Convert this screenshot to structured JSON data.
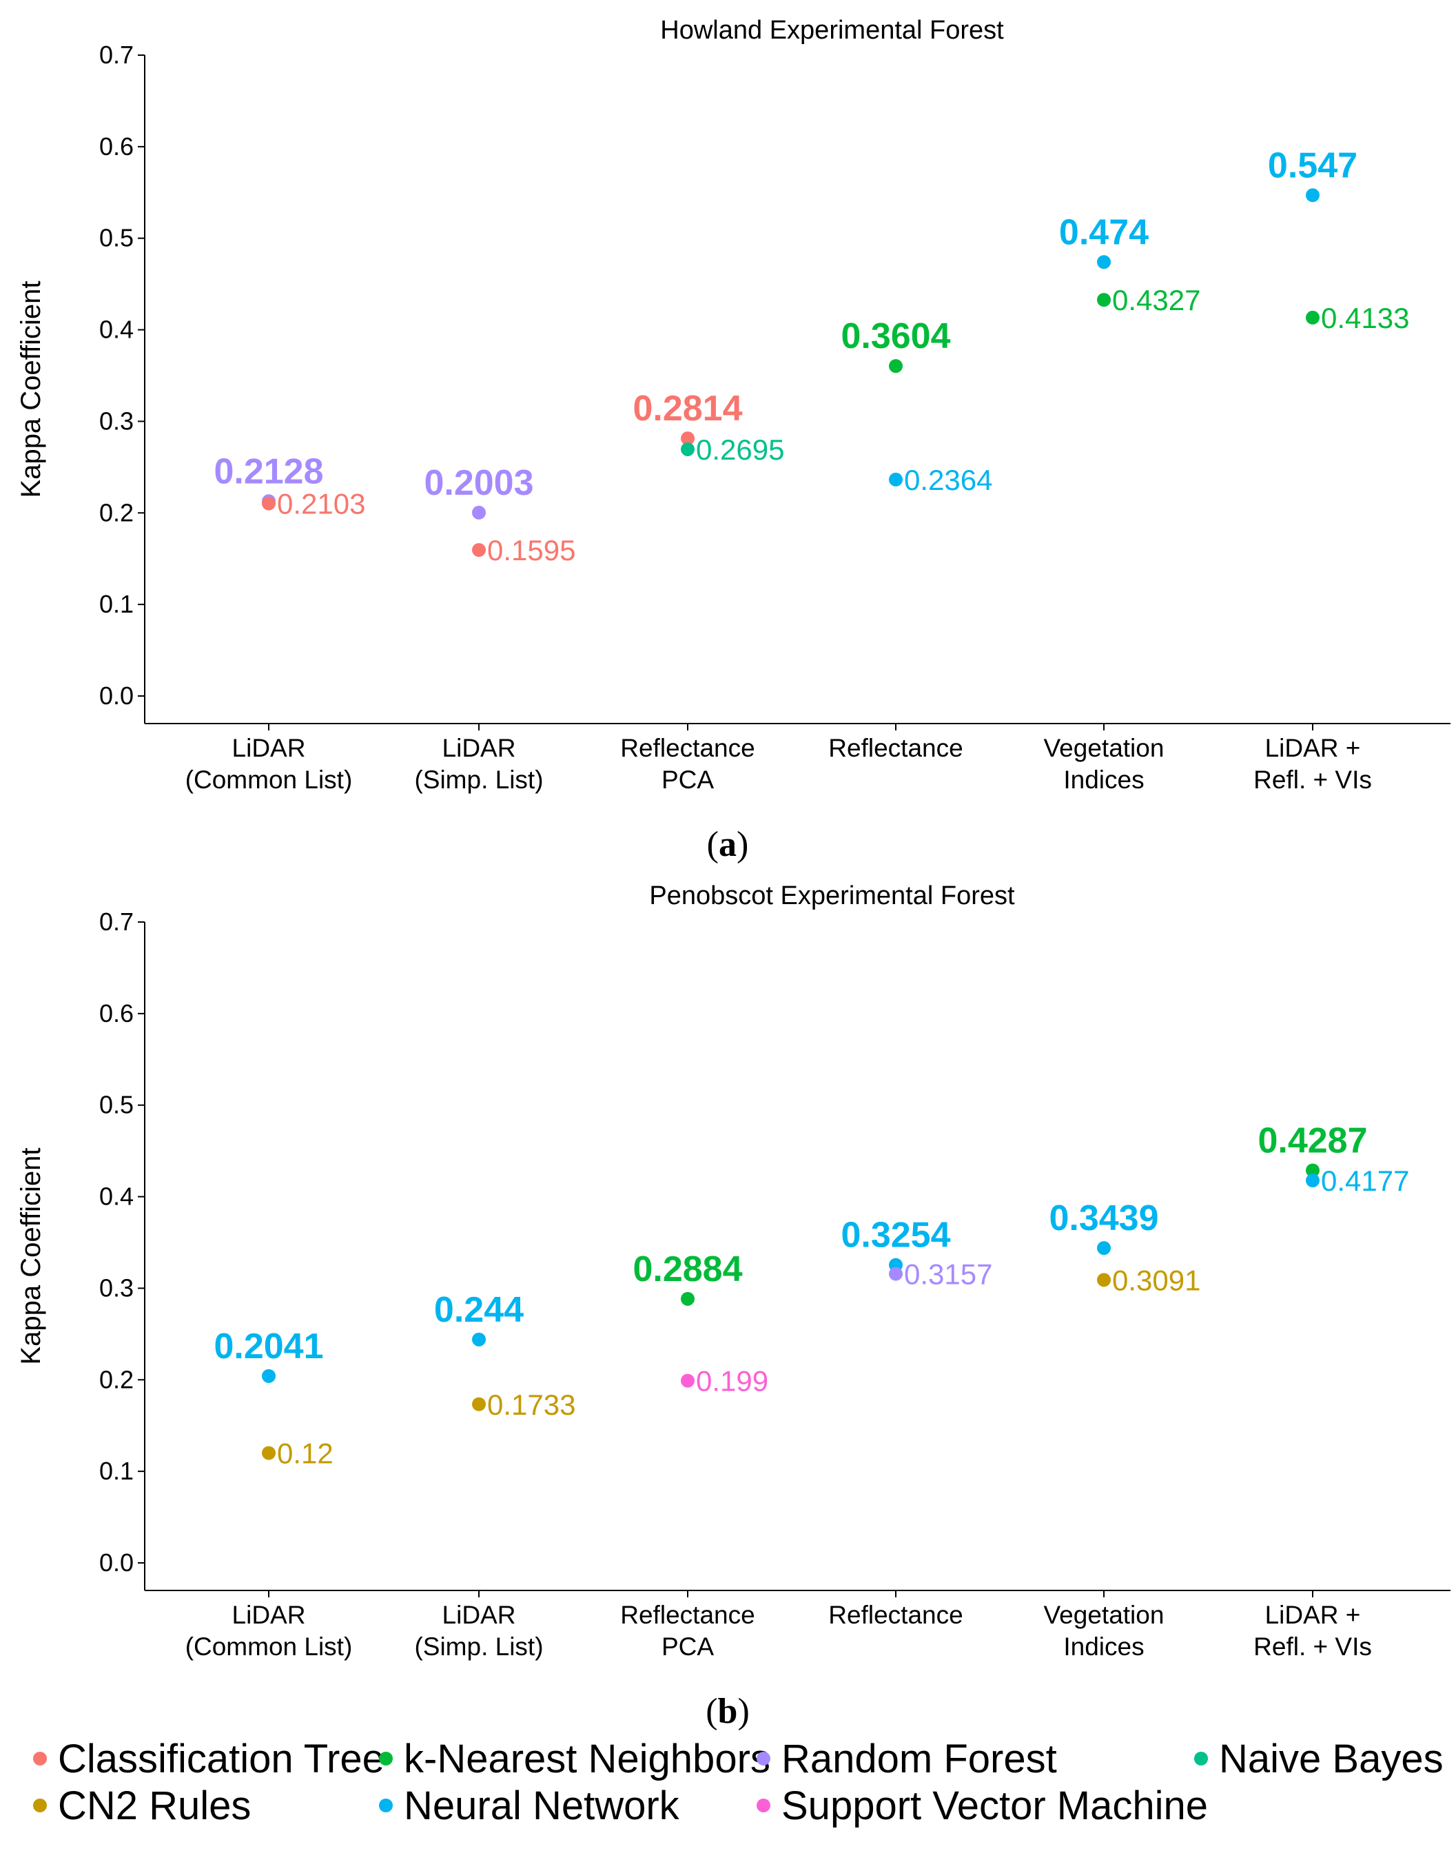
{
  "legend": [
    {
      "name": "Classification Tree",
      "color": "#F8766D"
    },
    {
      "name": "k-Nearest Neighbors",
      "color": "#00BA38"
    },
    {
      "name": "Random Forest",
      "color": "#A58AFF"
    },
    {
      "name": "Naive Bayes",
      "color": "#00C08B"
    },
    {
      "name": "CN2 Rules",
      "color": "#C49A00"
    },
    {
      "name": "Neural Network",
      "color": "#00B4EF"
    },
    {
      "name": "Support Vector Machine",
      "color": "#FB61D7"
    }
  ],
  "chart_data": [
    {
      "type": "scatter",
      "title": "Howland Experimental Forest",
      "subfig_prefix": "(",
      "subfig_letter": "a",
      "subfig_suffix": ")",
      "ylabel": "Kappa Coefficient",
      "ylim": [
        0.0,
        0.7
      ],
      "yticks": [
        "0.0",
        "0.1",
        "0.2",
        "0.3",
        "0.4",
        "0.5",
        "0.6",
        "0.7"
      ],
      "categories": [
        {
          "line1": "LiDAR",
          "line2": "(Common List)"
        },
        {
          "line1": "LiDAR",
          "line2": "(Simp. List)"
        },
        {
          "line1": "Reflectance",
          "line2": "PCA"
        },
        {
          "line1": "Reflectance",
          "line2": ""
        },
        {
          "line1": "Vegetation",
          "line2": "Indices"
        },
        {
          "line1": "LiDAR +",
          "line2": "Refl. + VIs"
        }
      ],
      "points": [
        {
          "cat": 0,
          "value": 0.2128,
          "label": "0.2128",
          "series": "Random Forest",
          "best": true,
          "color": "#A58AFF"
        },
        {
          "cat": 0,
          "value": 0.2103,
          "label": "0.2103",
          "series": "Classification Tree",
          "best": false,
          "color": "#F8766D"
        },
        {
          "cat": 1,
          "value": 0.2003,
          "label": "0.2003",
          "series": "Random Forest",
          "best": true,
          "color": "#A58AFF"
        },
        {
          "cat": 1,
          "value": 0.1595,
          "label": "0.1595",
          "series": "Classification Tree",
          "best": false,
          "color": "#F8766D"
        },
        {
          "cat": 2,
          "value": 0.2814,
          "label": "0.2814",
          "series": "Classification Tree",
          "best": true,
          "color": "#F8766D"
        },
        {
          "cat": 2,
          "value": 0.2695,
          "label": "0.2695",
          "series": "Naive Bayes",
          "best": false,
          "color": "#00C08B"
        },
        {
          "cat": 3,
          "value": 0.3604,
          "label": "0.3604",
          "series": "k-Nearest Neighbors",
          "best": true,
          "color": "#00BA38"
        },
        {
          "cat": 3,
          "value": 0.2364,
          "label": "0.2364",
          "series": "Neural Network",
          "best": false,
          "color": "#00B4EF"
        },
        {
          "cat": 4,
          "value": 0.474,
          "label": "0.474",
          "series": "Neural Network",
          "best": true,
          "color": "#00B4EF"
        },
        {
          "cat": 4,
          "value": 0.4327,
          "label": "0.4327",
          "series": "k-Nearest Neighbors",
          "best": false,
          "color": "#00BA38"
        },
        {
          "cat": 5,
          "value": 0.547,
          "label": "0.547",
          "series": "Neural Network",
          "best": true,
          "color": "#00B4EF"
        },
        {
          "cat": 5,
          "value": 0.4133,
          "label": "0.4133",
          "series": "k-Nearest Neighbors",
          "best": false,
          "color": "#00BA38"
        }
      ]
    },
    {
      "type": "scatter",
      "title": "Penobscot Experimental Forest",
      "subfig_prefix": "(",
      "subfig_letter": "b",
      "subfig_suffix": ")",
      "ylabel": "Kappa Coefficient",
      "ylim": [
        0.0,
        0.7
      ],
      "yticks": [
        "0.0",
        "0.1",
        "0.2",
        "0.3",
        "0.4",
        "0.5",
        "0.6",
        "0.7"
      ],
      "categories": [
        {
          "line1": "LiDAR",
          "line2": "(Common List)"
        },
        {
          "line1": "LiDAR",
          "line2": "(Simp. List)"
        },
        {
          "line1": "Reflectance",
          "line2": "PCA"
        },
        {
          "line1": "Reflectance",
          "line2": ""
        },
        {
          "line1": "Vegetation",
          "line2": "Indices"
        },
        {
          "line1": "LiDAR +",
          "line2": "Refl. + VIs"
        }
      ],
      "points": [
        {
          "cat": 0,
          "value": 0.2041,
          "label": "0.2041",
          "series": "Neural Network",
          "best": true,
          "color": "#00B4EF"
        },
        {
          "cat": 0,
          "value": 0.12,
          "label": "0.12",
          "series": "CN2 Rules",
          "best": false,
          "color": "#C49A00"
        },
        {
          "cat": 1,
          "value": 0.244,
          "label": "0.244",
          "series": "Neural Network",
          "best": true,
          "color": "#00B4EF"
        },
        {
          "cat": 1,
          "value": 0.1733,
          "label": "0.1733",
          "series": "CN2 Rules",
          "best": false,
          "color": "#C49A00"
        },
        {
          "cat": 2,
          "value": 0.2884,
          "label": "0.2884",
          "series": "k-Nearest Neighbors",
          "best": true,
          "color": "#00BA38"
        },
        {
          "cat": 2,
          "value": 0.199,
          "label": "0.199",
          "series": "Support Vector Machine",
          "best": false,
          "color": "#FB61D7"
        },
        {
          "cat": 3,
          "value": 0.3254,
          "label": "0.3254",
          "series": "Neural Network",
          "best": true,
          "color": "#00B4EF"
        },
        {
          "cat": 3,
          "value": 0.3157,
          "label": "0.3157",
          "series": "Random Forest",
          "best": false,
          "color": "#A58AFF"
        },
        {
          "cat": 4,
          "value": 0.3439,
          "label": "0.3439",
          "series": "Neural Network",
          "best": true,
          "color": "#00B4EF"
        },
        {
          "cat": 4,
          "value": 0.3091,
          "label": "0.3091",
          "series": "CN2 Rules",
          "best": false,
          "color": "#C49A00"
        },
        {
          "cat": 5,
          "value": 0.4287,
          "label": "0.4287",
          "series": "k-Nearest Neighbors",
          "best": true,
          "color": "#00BA38"
        },
        {
          "cat": 5,
          "value": 0.4177,
          "label": "0.4177",
          "series": "Neural Network",
          "best": false,
          "color": "#00B4EF"
        }
      ]
    }
  ]
}
